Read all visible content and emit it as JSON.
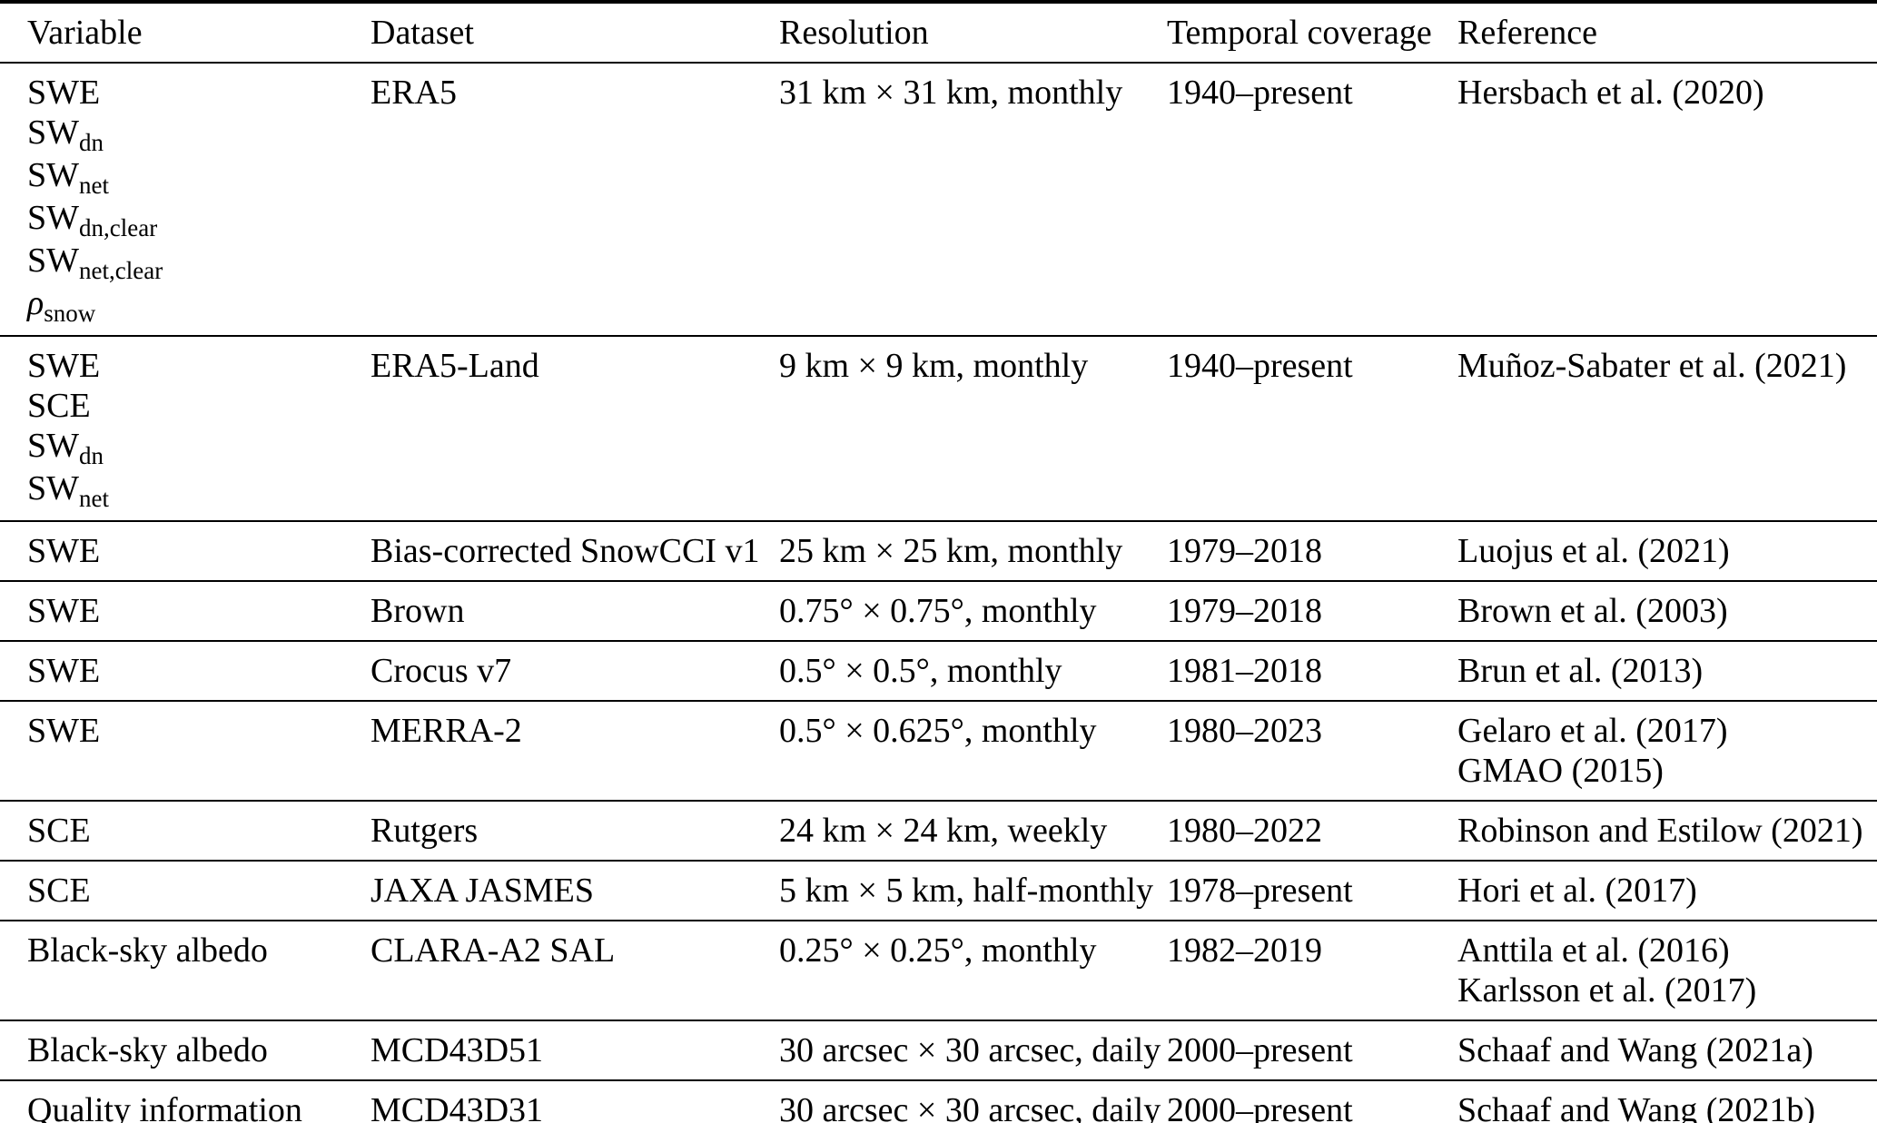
{
  "page": {
    "background_color": "#ffffff",
    "text_color": "#000000",
    "rule_color": "#000000"
  },
  "table": {
    "columns": [
      "Variable",
      "Dataset",
      "Resolution",
      "Temporal coverage",
      "Reference"
    ],
    "rows": [
      {
        "variables": [
          "SWE",
          "SW_dn",
          "SW_net",
          "SW_dn,clear",
          "SW_net,clear",
          "ρ_snow"
        ],
        "dataset": "ERA5",
        "resolution": "31 km × 31 km, monthly",
        "temporal_coverage": "1940–present",
        "references": [
          "Hersbach et al. (2020)"
        ]
      },
      {
        "variables": [
          "SWE",
          "SCE",
          "SW_dn",
          "SW_net"
        ],
        "dataset": "ERA5-Land",
        "resolution": "9 km × 9 km, monthly",
        "temporal_coverage": "1940–present",
        "references": [
          "Muñoz-Sabater et al. (2021)"
        ]
      },
      {
        "variables": [
          "SWE"
        ],
        "dataset": "Bias-corrected SnowCCI v1",
        "resolution": "25 km × 25 km, monthly",
        "temporal_coverage": "1979–2018",
        "references": [
          "Luojus et al. (2021)"
        ]
      },
      {
        "variables": [
          "SWE"
        ],
        "dataset": "Brown",
        "resolution": "0.75° × 0.75°, monthly",
        "temporal_coverage": "1979–2018",
        "references": [
          "Brown et al. (2003)"
        ]
      },
      {
        "variables": [
          "SWE"
        ],
        "dataset": "Crocus v7",
        "resolution": "0.5° × 0.5°, monthly",
        "temporal_coverage": "1981–2018",
        "references": [
          "Brun et al. (2013)"
        ]
      },
      {
        "variables": [
          "SWE"
        ],
        "dataset": "MERRA-2",
        "resolution": "0.5° × 0.625°, monthly",
        "temporal_coverage": "1980–2023",
        "references": [
          "Gelaro et al. (2017)",
          "GMAO (2015)"
        ]
      },
      {
        "variables": [
          "SCE"
        ],
        "dataset": "Rutgers",
        "resolution": "24 km × 24 km, weekly",
        "temporal_coverage": "1980–2022",
        "references": [
          "Robinson and Estilow (2021)"
        ]
      },
      {
        "variables": [
          "SCE"
        ],
        "dataset": "JAXA JASMES",
        "resolution": "5 km × 5 km, half-monthly",
        "temporal_coverage": "1978–present",
        "references": [
          "Hori et al. (2017)"
        ]
      },
      {
        "variables": [
          "Black-sky albedo"
        ],
        "dataset": "CLARA-A2 SAL",
        "resolution": "0.25° × 0.25°, monthly",
        "temporal_coverage": "1982–2019",
        "references": [
          "Anttila et al. (2016)",
          "Karlsson et al. (2017)"
        ]
      },
      {
        "variables": [
          "Black-sky albedo"
        ],
        "dataset": "MCD43D51",
        "resolution": "30 arcsec × 30 arcsec, daily",
        "temporal_coverage": "2000–present",
        "references": [
          "Schaaf and Wang (2021a)"
        ]
      },
      {
        "variables": [
          "Quality information"
        ],
        "dataset": "MCD43D31",
        "resolution": "30 arcsec × 30 arcsec, daily",
        "temporal_coverage": "2000–present",
        "references": [
          "Schaaf and Wang (2021b)"
        ]
      }
    ]
  }
}
